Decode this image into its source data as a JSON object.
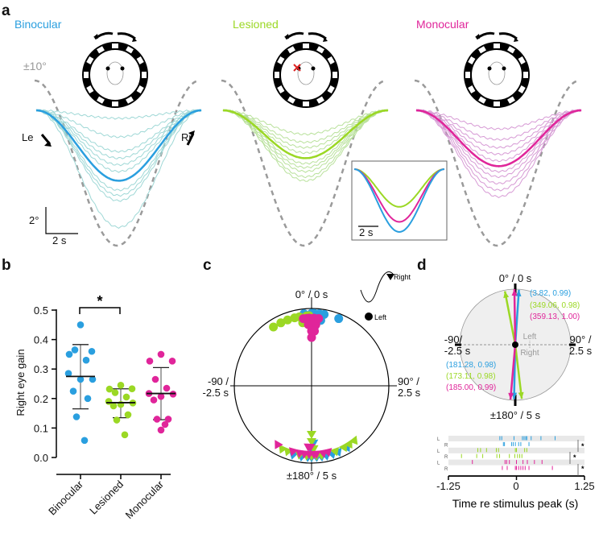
{
  "colors": {
    "binocular": "#2a9fdf",
    "lesioned": "#9bd824",
    "monocular": "#e0259a",
    "binocular_light": "#9fd8d6",
    "lesioned_light": "#b9e19c",
    "monocular_light": "#d79bd5",
    "stimulus": "#9a9a9a"
  },
  "panels": {
    "a": "a",
    "b": "b",
    "c": "c",
    "d": "d"
  },
  "chart_data": [
    {
      "panel": "a",
      "type": "line",
      "stimulus_label": "±10°",
      "direction_labels": {
        "left": "Le",
        "right": "Ri"
      },
      "scale_bar": {
        "y_label": "2°",
        "x_label": "2 s"
      },
      "period_s": 10,
      "groups": [
        {
          "name": "Binocular",
          "mean_amplitude_deg": 5.3,
          "trace_amplitudes_deg": [
            0.6,
            2.0,
            3.1,
            3.6,
            4.1,
            4.6,
            5.3,
            6.0,
            6.4,
            6.8,
            8.8
          ]
        },
        {
          "name": "Lesioned",
          "mean_amplitude_deg": 3.6,
          "trace_amplitudes_deg": [
            1.8,
            2.4,
            2.8,
            3.2,
            3.6,
            4.0,
            4.3,
            4.6,
            5.0,
            5.3
          ]
        },
        {
          "name": "Monocular",
          "mean_amplitude_deg": 4.2,
          "trace_amplitudes_deg": [
            1.4,
            2.2,
            2.8,
            3.3,
            3.8,
            4.2,
            4.6,
            5.0,
            5.5,
            6.0,
            6.5
          ]
        }
      ],
      "inset": {
        "scale_label": "2 s",
        "normalized_troughs": {
          "Lesioned": 0.6,
          "Monocular": 0.84,
          "Binocular": 1.0
        }
      }
    },
    {
      "panel": "b",
      "type": "scatter",
      "ylabel": "Right eye gain",
      "ylim": [
        0,
        0.5
      ],
      "yticks": [
        "0.0",
        "0.1",
        "0.2",
        "0.3",
        "0.4",
        "0.5"
      ],
      "categories": [
        "Binocular",
        "Lesioned",
        "Monocular"
      ],
      "significance": {
        "between": [
          "Binocular",
          "Lesioned"
        ],
        "label": "*"
      },
      "series": [
        {
          "name": "Binocular",
          "values": [
            0.45,
            0.35,
            0.36,
            0.365,
            0.33,
            0.285,
            0.265,
            0.265,
            0.225,
            0.2,
            0.138,
            0.058
          ],
          "mean": 0.275,
          "sd_low": 0.165,
          "sd_high": 0.383
        },
        {
          "name": "Lesioned",
          "values": [
            0.245,
            0.232,
            0.233,
            0.22,
            0.205,
            0.19,
            0.185,
            0.18,
            0.175,
            0.145,
            0.127,
            0.077
          ],
          "mean": 0.186,
          "sd_low": 0.135,
          "sd_high": 0.233
        },
        {
          "name": "Monocular",
          "values": [
            0.35,
            0.327,
            0.327,
            0.265,
            0.235,
            0.217,
            0.215,
            0.207,
            0.195,
            0.13,
            0.13,
            0.112,
            0.093
          ],
          "mean": 0.217,
          "sd_low": 0.128,
          "sd_high": 0.305
        }
      ]
    },
    {
      "panel": "c",
      "type": "scatter",
      "polar": true,
      "axis_labels": {
        "top": "0° / 0 s",
        "bottom": "±180° / 5 s",
        "left": "-90 /",
        "left2": "-2.5 s",
        "right": "90° /",
        "right2": "2.5 s"
      },
      "legend": {
        "right": "Right",
        "left": "Left"
      },
      "left_eye_phase_deg": {
        "Binocular": [
          -6,
          -3,
          0,
          2,
          4,
          6,
          8,
          10,
          3,
          1,
          22
        ],
        "Lesioned": [
          -10,
          -14,
          -20,
          -26,
          -33,
          -8,
          -4,
          -2,
          0
        ],
        "Monocular": [
          -7,
          -4,
          -2,
          0,
          2,
          4,
          6,
          -3,
          0,
          3,
          0
        ]
      },
      "right_eye_phase_deg": {
        "Binocular": [
          195,
          188,
          183,
          180,
          176,
          172,
          168,
          163,
          158,
          150,
          180,
          178
        ],
        "Lesioned": [
          205,
          200,
          190,
          184,
          180,
          178,
          176,
          172,
          160,
          152,
          147,
          142,
          180,
          180
        ],
        "Monocular": [
          210,
          196,
          190,
          186,
          182,
          178,
          176,
          170,
          166,
          183,
          181
        ]
      }
    },
    {
      "panel": "d",
      "type": "scatter",
      "polar": true,
      "axis_labels": {
        "top": "0° / 0 s",
        "bottom": "±180° / 5 s",
        "left": "-90/",
        "left2": "-2.5 s",
        "right": "90° /",
        "right2": "2.5 s"
      },
      "eye_labels": {
        "left": "Left",
        "right": "Right"
      },
      "vectors": [
        {
          "group": "Binocular",
          "eye": "Left",
          "angle_deg": 3.82,
          "length": 0.99,
          "label": "(3.82, 0.99)"
        },
        {
          "group": "Lesioned",
          "eye": "Left",
          "angle_deg": 349.06,
          "length": 0.98,
          "label": "(349.06, 0.98)"
        },
        {
          "group": "Monocular",
          "eye": "Left",
          "angle_deg": 359.13,
          "length": 1.0,
          "label": "(359.13, 1.00)"
        },
        {
          "group": "Binocular",
          "eye": "Right",
          "angle_deg": 181.28,
          "length": 0.98,
          "label": "(181.28, 0.98)"
        },
        {
          "group": "Lesioned",
          "eye": "Right",
          "angle_deg": 173.11,
          "length": 0.98,
          "label": "(173.11, 0.98)"
        },
        {
          "group": "Monocular",
          "eye": "Right",
          "angle_deg": 185.0,
          "length": 0.99,
          "label": "(185.00, 0.99)"
        }
      ],
      "raster": {
        "xlabel": "Time re stimulus peak (s)",
        "xlim": [
          -1.25,
          1.25
        ],
        "xticks": [
          "-1.25",
          "0",
          "1.25"
        ],
        "significance_label": "*",
        "rows": [
          {
            "group": "Binocular",
            "eye": "L",
            "times": [
              -0.305,
              -0.27,
              -0.045,
              0.11,
              0.14,
              0.17,
              0.19,
              0.27,
              0.45,
              0.71
            ]
          },
          {
            "group": "Binocular",
            "eye": "R",
            "times": [
              -0.24,
              -0.22,
              -0.09,
              -0.06,
              -0.02,
              0.04,
              0.08,
              0.23
            ]
          },
          {
            "group": "Lesioned",
            "eye": "L",
            "times": [
              -0.71,
              -0.66,
              -0.55,
              -0.37,
              -0.33,
              -0.02,
              0,
              0.15,
              0.19
            ]
          },
          {
            "group": "Lesioned",
            "eye": "R",
            "times": [
              -1.01,
              -0.73,
              -0.62,
              -0.36,
              -0.31,
              -0.13,
              -0.03,
              0.02,
              0.06,
              0.1
            ]
          },
          {
            "group": "Monocular",
            "eye": "L",
            "times": [
              -0.81,
              -0.21,
              -0.18,
              -0.13,
              0,
              0.12,
              0.2,
              0.33,
              0.47
            ]
          },
          {
            "group": "Monocular",
            "eye": "R",
            "times": [
              -0.26,
              -0.17,
              -0.02,
              0,
              0.04,
              0.08,
              0.12,
              0.16,
              0.23,
              0.66
            ]
          }
        ]
      }
    }
  ]
}
